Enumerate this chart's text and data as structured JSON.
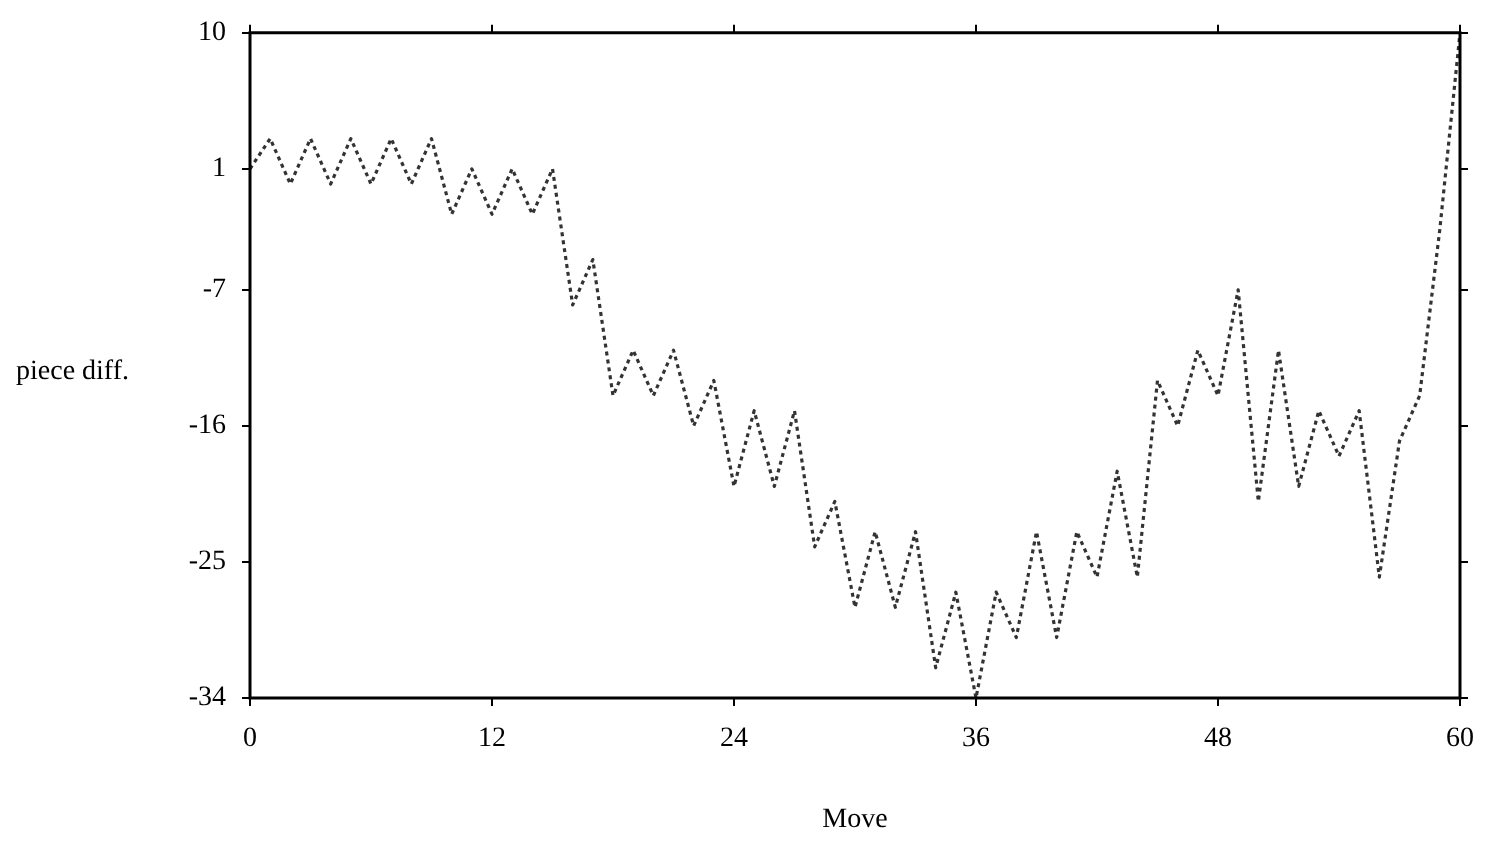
{
  "chart_data": {
    "type": "line",
    "xlabel": "Move",
    "ylabel": "piece diff.",
    "x": [
      0,
      1,
      2,
      3,
      4,
      5,
      6,
      7,
      8,
      9,
      10,
      11,
      12,
      13,
      14,
      15,
      16,
      17,
      18,
      19,
      20,
      21,
      22,
      23,
      24,
      25,
      26,
      27,
      28,
      29,
      30,
      31,
      32,
      33,
      34,
      35,
      36,
      37,
      38,
      39,
      40,
      41,
      42,
      43,
      44,
      45,
      46,
      47,
      48,
      49,
      50,
      51,
      52,
      53,
      54,
      55,
      56,
      57,
      58,
      59,
      60
    ],
    "series": [
      {
        "color": "#333333",
        "values": [
          1,
          3,
          0,
          3,
          0,
          3,
          0,
          3,
          0,
          3,
          -2,
          1,
          -2,
          1,
          -2,
          1,
          -8,
          -5,
          -14,
          -11,
          -14,
          -11,
          -16,
          -13,
          -20,
          -15,
          -20,
          -15,
          -24,
          -21,
          -28,
          -23,
          -28,
          -23,
          -32,
          -27,
          -34,
          -27,
          -30,
          -23,
          -30,
          -23,
          -26,
          -19,
          -26,
          -13,
          -16,
          -11,
          -14,
          -7,
          -21,
          -11,
          -20,
          -15,
          -18,
          -15,
          -26,
          -17,
          -14,
          -3,
          10
        ]
      }
    ],
    "xlim": [
      0,
      60
    ],
    "xticks": [
      0,
      12,
      24,
      36,
      48,
      60
    ],
    "ylim": [
      -34,
      10
    ],
    "yticks": [
      -34,
      -25,
      -16,
      -7,
      1,
      10
    ],
    "grid": false,
    "legend": false,
    "marker": "none",
    "line_style": "dotted"
  }
}
